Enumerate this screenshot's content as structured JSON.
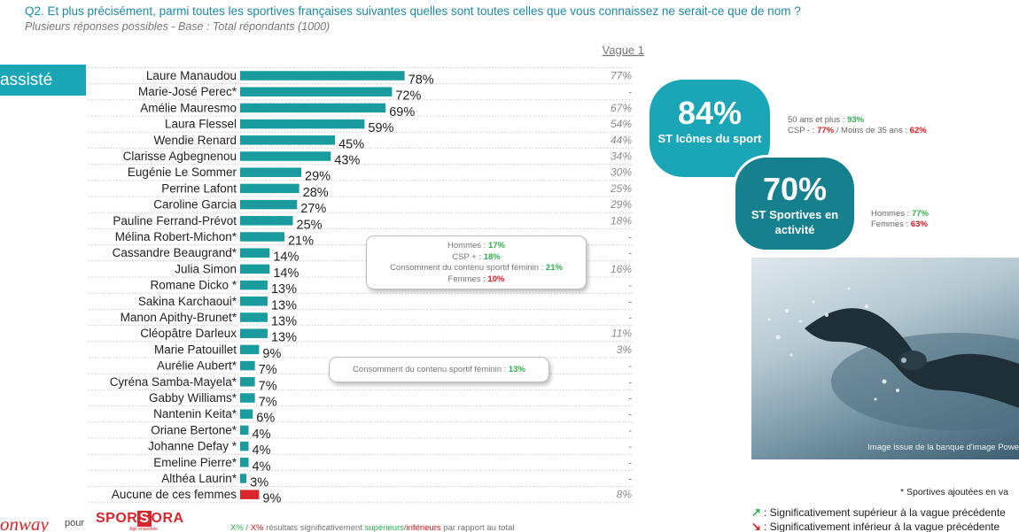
{
  "header": {
    "question": "Q2. Et plus précisément, parmi toutes les sportives françaises suivantes quelles sont toutes celles que vous connaissez ne serait-ce que de nom ?",
    "subtitle": "Plusieurs réponses possibles - Base : Total répondants (1000)",
    "tab_label": "assisté"
  },
  "colors": {
    "bar": "#1a9b9e",
    "bar_none": "#d8262c",
    "circle1": "#1aa6b7",
    "circle2": "#16808e",
    "green": "#2bb24c",
    "red": "#e0161b"
  },
  "chart_data": {
    "type": "bar",
    "orientation": "horizontal",
    "xlim": [
      0,
      100
    ],
    "vague_header": "Vague 1",
    "categories": [
      "Laure Manaudou",
      "Marie-José Perec*",
      "Amélie Mauresmo",
      "Laura Flessel",
      "Wendie Renard",
      "Clarisse Agbegnenou",
      "Eugénie Le Sommer",
      "Perrine Lafont",
      "Caroline Garcia",
      "Pauline Ferrand-Prévot",
      "Mélina Robert-Michon*",
      "Cassandre Beaugrand*",
      "Julia Simon",
      "Romane Dicko *",
      "Sakina Karchaoui*",
      "Manon Apithy-Brunet*",
      "Cléopâtre Darleux",
      "Marie Patouillet",
      "Aurélie Aubert*",
      "Cyréna Samba-Mayela*",
      "Gabby Williams*",
      "Nantenin Keita*",
      "Oriane Bertone*",
      "Johanne Defay *",
      "Emeline Pierre*",
      "Althéa Laurin*",
      "Aucune de ces femmes"
    ],
    "values": [
      78,
      72,
      69,
      59,
      45,
      43,
      29,
      28,
      27,
      25,
      21,
      14,
      14,
      13,
      13,
      13,
      13,
      9,
      7,
      7,
      7,
      6,
      4,
      4,
      4,
      3,
      9
    ],
    "value_labels": [
      "78%",
      "72%",
      "69%",
      "59%",
      "45%",
      "43%",
      "29%",
      "28%",
      "27%",
      "25%",
      "21%",
      "14%",
      "14%",
      "13%",
      "13%",
      "13%",
      "13%",
      "9%",
      "7%",
      "7%",
      "7%",
      "6%",
      "4%",
      "4%",
      "4%",
      "3%",
      "9%"
    ],
    "previous_wave": [
      "77%",
      "-",
      "67%",
      "54%",
      "44%",
      "34%",
      "30%",
      "25%",
      "29%",
      "18%",
      "-",
      "-",
      "16%",
      "-",
      "-",
      "-",
      "11%",
      "3%",
      "-",
      "-",
      "-",
      "-",
      "-",
      "-",
      "-",
      "-",
      "8%"
    ]
  },
  "callouts": {
    "box1": [
      {
        "text": "Hommes : ",
        "value": "17%",
        "tone": "g"
      },
      {
        "text": "CSP + : ",
        "value": "18%",
        "tone": "g"
      },
      {
        "text": "Consomment du contenu sportif féminin : ",
        "value": "21%",
        "tone": "g"
      },
      {
        "text": "Femmes : ",
        "value": "10%",
        "tone": "r"
      }
    ],
    "box2": {
      "text": "Consomment du contenu sportif féminin : ",
      "value": "13%"
    }
  },
  "circles": {
    "icones": {
      "value": "84%",
      "label": "ST Icônes du sport"
    },
    "actives": {
      "value": "70%",
      "label": "ST Sportives en activité"
    }
  },
  "side_notes": {
    "icones_line1_text": "50 ans et plus : ",
    "icones_line1_value": "93%",
    "icones_line2_text1": "CSP - : ",
    "icones_line2_value1": "77%",
    "icones_line2_text2": " / Moins de 35 ans : ",
    "icones_line2_value2": "62%",
    "actives_line1_text": "Hommes : ",
    "actives_line1_value": "77%",
    "actives_line2_text": "Femmes : ",
    "actives_line2_value": "63%"
  },
  "photo_caption": "Image issue de la banque d'image Powe",
  "footnote": "* Sportives ajoutées en va",
  "legend": {
    "up": ": Significativement supérieur à la vague précédente",
    "down": ": Significativement inférieur à la vague précédente"
  },
  "footer": {
    "logo_left": "onway",
    "pour": "pour",
    "logo_right_a": "SPOR",
    "logo_right_b": "S",
    "logo_right_c": "ORA",
    "logo_tagline": "Agir ensemble",
    "sig_a": "X%",
    "sig_sep": " / ",
    "sig_b": "X%",
    "sig_c": " résultats significativement ",
    "sig_d": "supérieurs",
    "sig_e": "/",
    "sig_f": "inférieurs",
    "sig_g": " par rapport au total"
  }
}
